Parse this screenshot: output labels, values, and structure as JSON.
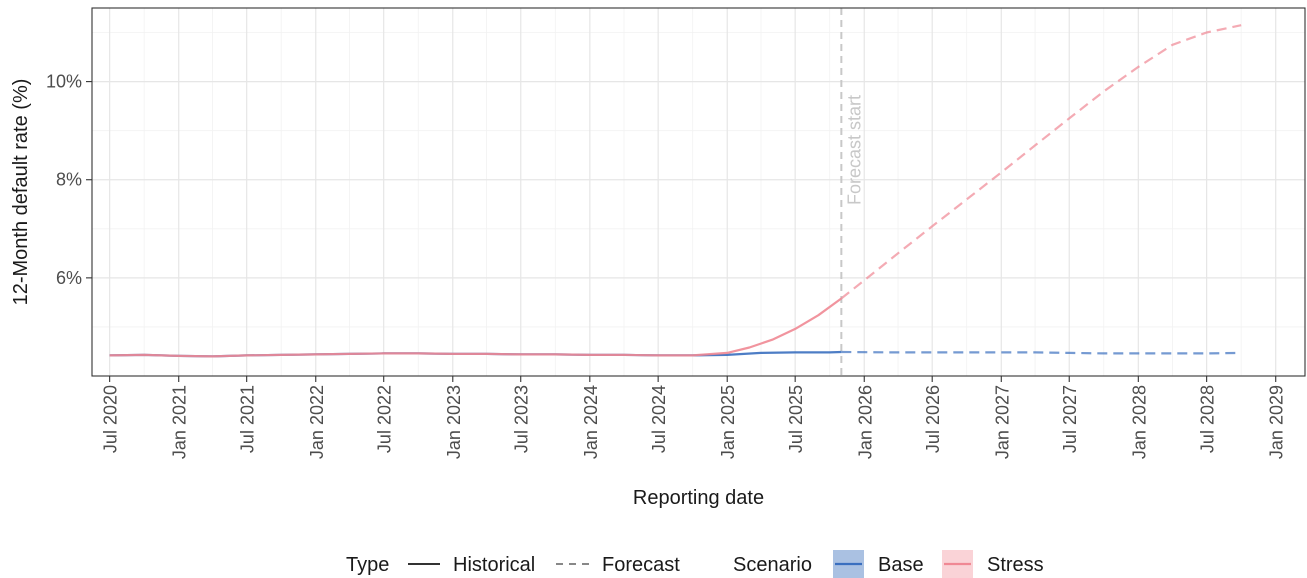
{
  "chart_data": {
    "type": "line",
    "xlabel": "Reporting date",
    "ylabel": "12-Month default rate (%)",
    "xlim": [
      "2020-05-15",
      "2029-03-20"
    ],
    "ylim": [
      4.0,
      11.5
    ],
    "x_ticks": [
      "2020-07-01",
      "2021-01-01",
      "2021-07-01",
      "2022-01-01",
      "2022-07-01",
      "2023-01-01",
      "2023-07-01",
      "2024-01-01",
      "2024-07-01",
      "2025-01-01",
      "2025-07-01",
      "2026-01-01",
      "2026-07-01",
      "2027-01-01",
      "2027-07-01",
      "2028-01-01",
      "2028-07-01",
      "2029-01-01"
    ],
    "x_tick_labels": [
      "Jul 2020",
      "Jan 2021",
      "Jul 2021",
      "Jan 2022",
      "Jul 2022",
      "Jan 2023",
      "Jul 2023",
      "Jan 2024",
      "Jul 2024",
      "Jan 2025",
      "Jul 2025",
      "Jan 2026",
      "Jul 2026",
      "Jan 2027",
      "Jul 2027",
      "Jan 2028",
      "Jul 2028",
      "Jan 2029"
    ],
    "y_ticks": [
      6,
      8,
      10
    ],
    "y_tick_labels": [
      "6%",
      "8%",
      "10%"
    ],
    "y_minor_ticks": [
      5,
      7,
      9,
      11
    ],
    "grid": true,
    "forecast_start": "2025-11-01",
    "annotation": "Forecast start",
    "legend_position": "bottom",
    "legend": {
      "type_title": "Type",
      "type_items": [
        "Historical",
        "Forecast"
      ],
      "scenario_title": "Scenario",
      "scenario_items": [
        "Base",
        "Stress"
      ]
    },
    "colors": {
      "Base": "#3a6fbf",
      "Stress": "#f08894",
      "vline": "#c8c8c8"
    },
    "series": [
      {
        "name": "Base",
        "historical": {
          "x": [
            "2020-07-01",
            "2020-10-01",
            "2021-01-01",
            "2021-04-01",
            "2021-07-01",
            "2021-10-01",
            "2022-01-01",
            "2022-04-01",
            "2022-07-01",
            "2022-10-01",
            "2023-01-01",
            "2023-04-01",
            "2023-07-01",
            "2023-10-01",
            "2024-01-01",
            "2024-04-01",
            "2024-07-01",
            "2024-10-01",
            "2025-01-01",
            "2025-04-01",
            "2025-07-01",
            "2025-10-01",
            "2025-11-01"
          ],
          "y": [
            4.42,
            4.43,
            4.41,
            4.4,
            4.42,
            4.43,
            4.44,
            4.45,
            4.46,
            4.46,
            4.45,
            4.45,
            4.44,
            4.44,
            4.43,
            4.43,
            4.42,
            4.42,
            4.43,
            4.47,
            4.48,
            4.48,
            4.49
          ]
        },
        "forecast": {
          "x": [
            "2025-11-01",
            "2026-04-01",
            "2026-10-01",
            "2027-04-01",
            "2027-07-01",
            "2027-10-01",
            "2028-01-01",
            "2028-04-01",
            "2028-07-01",
            "2028-10-01"
          ],
          "y": [
            4.49,
            4.48,
            4.48,
            4.48,
            4.47,
            4.46,
            4.46,
            4.46,
            4.46,
            4.47
          ]
        }
      },
      {
        "name": "Stress",
        "historical": {
          "x": [
            "2020-07-01",
            "2020-10-01",
            "2021-01-01",
            "2021-04-01",
            "2021-07-01",
            "2021-10-01",
            "2022-01-01",
            "2022-04-01",
            "2022-07-01",
            "2022-10-01",
            "2023-01-01",
            "2023-04-01",
            "2023-07-01",
            "2023-10-01",
            "2024-01-01",
            "2024-04-01",
            "2024-07-01",
            "2024-10-01",
            "2025-01-01",
            "2025-03-01",
            "2025-05-01",
            "2025-07-01",
            "2025-09-01",
            "2025-11-01"
          ],
          "y": [
            4.42,
            4.43,
            4.41,
            4.4,
            4.42,
            4.43,
            4.44,
            4.45,
            4.46,
            4.46,
            4.45,
            4.45,
            4.44,
            4.44,
            4.43,
            4.43,
            4.42,
            4.42,
            4.47,
            4.58,
            4.74,
            4.96,
            5.24,
            5.58
          ]
        },
        "forecast": {
          "x": [
            "2025-11-01",
            "2026-01-01",
            "2026-04-01",
            "2026-07-01",
            "2026-10-01",
            "2027-01-01",
            "2027-04-01",
            "2027-07-01",
            "2027-10-01",
            "2028-01-01",
            "2028-04-01",
            "2028-07-01",
            "2028-10-01"
          ],
          "y": [
            5.58,
            5.95,
            6.5,
            7.05,
            7.6,
            8.15,
            8.7,
            9.25,
            9.8,
            10.3,
            10.75,
            11.0,
            11.15
          ]
        }
      }
    ]
  }
}
